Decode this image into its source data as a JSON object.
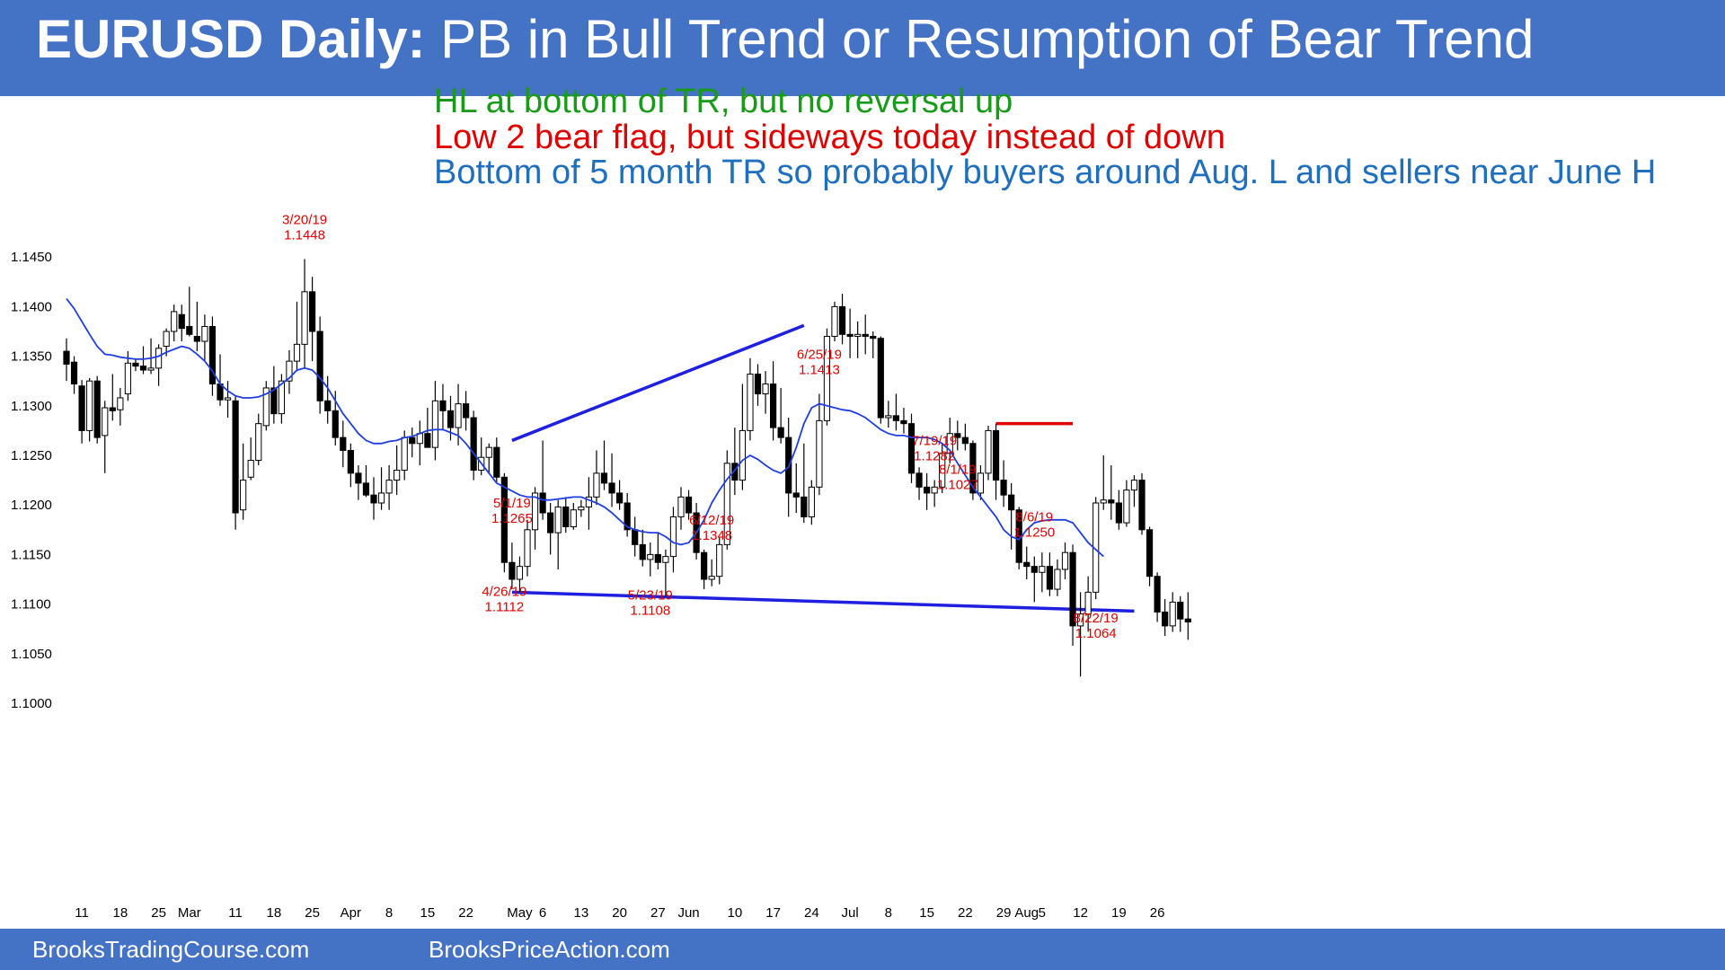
{
  "header": {
    "title_bold": "EURUSD Daily:",
    "title_rest": " PB in Bull Trend or Resumption of Bear Trend"
  },
  "notes": [
    {
      "text": "HL at bottom of TR, but no reversal up",
      "color": "#1a9a1a"
    },
    {
      "text": "Low 2 bear flag, but sideways today instead of down",
      "color": "#e00000"
    },
    {
      "text": "Bottom of 5 month TR so probably buyers around Aug. L and sellers near June H",
      "color": "#1f6fbf"
    }
  ],
  "footer": {
    "left": "BrooksTradingCourse.com",
    "right": "BrooksPriceAction.com"
  },
  "colors": {
    "header_bg": "#4472c4",
    "ema": "#1f3fe0",
    "trendline": "#1f1fe0",
    "resistance": "#e00000",
    "annotation": "#e00000"
  },
  "chart_data": {
    "type": "candlestick",
    "title": "EURUSD Daily",
    "ylim": [
      1.098,
      1.1465
    ],
    "y_ticks": [
      1.1,
      1.105,
      1.11,
      1.115,
      1.12,
      1.125,
      1.13,
      1.135,
      1.14,
      1.145
    ],
    "y_tick_labels": [
      "1.1000",
      "1.1050",
      "1.1100",
      "1.1150",
      "1.1200",
      "1.1250",
      "1.1300",
      "1.1350",
      "1.1400",
      "1.1450"
    ],
    "grid": false,
    "x_ticks": [
      {
        "label": "11",
        "bar": 2
      },
      {
        "label": "18",
        "bar": 7
      },
      {
        "label": "25",
        "bar": 12
      },
      {
        "label": "Mar",
        "bar": 16
      },
      {
        "label": "11",
        "bar": 22
      },
      {
        "label": "18",
        "bar": 27
      },
      {
        "label": "25",
        "bar": 32
      },
      {
        "label": "Apr",
        "bar": 37
      },
      {
        "label": "8",
        "bar": 42
      },
      {
        "label": "15",
        "bar": 47
      },
      {
        "label": "22",
        "bar": 52
      },
      {
        "label": "May",
        "bar": 59
      },
      {
        "label": "6",
        "bar": 62
      },
      {
        "label": "13",
        "bar": 67
      },
      {
        "label": "20",
        "bar": 72
      },
      {
        "label": "27",
        "bar": 77
      },
      {
        "label": "Jun",
        "bar": 81
      },
      {
        "label": "10",
        "bar": 87
      },
      {
        "label": "17",
        "bar": 92
      },
      {
        "label": "24",
        "bar": 97
      },
      {
        "label": "Jul",
        "bar": 102
      },
      {
        "label": "8",
        "bar": 107
      },
      {
        "label": "15",
        "bar": 112
      },
      {
        "label": "22",
        "bar": 117
      },
      {
        "label": "29",
        "bar": 122
      },
      {
        "label": "Aug",
        "bar": 125
      },
      {
        "label": "5",
        "bar": 127
      },
      {
        "label": "12",
        "bar": 132
      },
      {
        "label": "19",
        "bar": 137
      },
      {
        "label": "26",
        "bar": 142
      }
    ],
    "bars_ohlc": [
      [
        1.1355,
        1.1368,
        1.1325,
        1.1342
      ],
      [
        1.1344,
        1.135,
        1.1312,
        1.1322
      ],
      [
        1.132,
        1.1326,
        1.1262,
        1.1275
      ],
      [
        1.1275,
        1.1328,
        1.1264,
        1.1325
      ],
      [
        1.1325,
        1.133,
        1.1262,
        1.1268
      ],
      [
        1.127,
        1.1305,
        1.1232,
        1.1298
      ],
      [
        1.1298,
        1.1332,
        1.1285,
        1.1295
      ],
      [
        1.1296,
        1.1318,
        1.128,
        1.1308
      ],
      [
        1.1312,
        1.1355,
        1.1305,
        1.1343
      ],
      [
        1.1343,
        1.1348,
        1.1335,
        1.134
      ],
      [
        1.134,
        1.136,
        1.1332,
        1.1336
      ],
      [
        1.1336,
        1.1368,
        1.1332,
        1.1338
      ],
      [
        1.1338,
        1.1362,
        1.132,
        1.1358
      ],
      [
        1.136,
        1.1378,
        1.135,
        1.1375
      ],
      [
        1.1375,
        1.1402,
        1.1365,
        1.1395
      ],
      [
        1.1392,
        1.1402,
        1.1365,
        1.1378
      ],
      [
        1.138,
        1.142,
        1.137,
        1.1372
      ],
      [
        1.137,
        1.1405,
        1.1355,
        1.1365
      ],
      [
        1.1365,
        1.1392,
        1.1345,
        1.138
      ],
      [
        1.138,
        1.139,
        1.131,
        1.1322
      ],
      [
        1.1322,
        1.1352,
        1.13,
        1.1306
      ],
      [
        1.1306,
        1.1325,
        1.1288,
        1.1308
      ],
      [
        1.1305,
        1.131,
        1.1175,
        1.1192
      ],
      [
        1.1195,
        1.1262,
        1.1185,
        1.1225
      ],
      [
        1.1228,
        1.1268,
        1.1225,
        1.1245
      ],
      [
        1.1245,
        1.1292,
        1.124,
        1.1282
      ],
      [
        1.128,
        1.1325,
        1.1275,
        1.1318
      ],
      [
        1.1318,
        1.134,
        1.1282,
        1.1292
      ],
      [
        1.1292,
        1.1332,
        1.1282,
        1.1325
      ],
      [
        1.1325,
        1.1356,
        1.1312,
        1.1345
      ],
      [
        1.1345,
        1.1405,
        1.1335,
        1.1362
      ],
      [
        1.1362,
        1.1448,
        1.1338,
        1.1415
      ],
      [
        1.1415,
        1.143,
        1.1345,
        1.1375
      ],
      [
        1.1375,
        1.139,
        1.1292,
        1.1305
      ],
      [
        1.1305,
        1.133,
        1.1282,
        1.1295
      ],
      [
        1.1295,
        1.1315,
        1.126,
        1.1268
      ],
      [
        1.1268,
        1.1285,
        1.1238,
        1.1255
      ],
      [
        1.1255,
        1.1262,
        1.1218,
        1.1232
      ],
      [
        1.1232,
        1.124,
        1.1205,
        1.1222
      ],
      [
        1.1222,
        1.124,
        1.1208,
        1.121
      ],
      [
        1.121,
        1.1228,
        1.1185,
        1.1202
      ],
      [
        1.1202,
        1.1238,
        1.1195,
        1.1212
      ],
      [
        1.1212,
        1.124,
        1.1195,
        1.1225
      ],
      [
        1.1225,
        1.126,
        1.121,
        1.1235
      ],
      [
        1.1235,
        1.1275,
        1.1225,
        1.1268
      ],
      [
        1.1268,
        1.1278,
        1.1248,
        1.1262
      ],
      [
        1.1262,
        1.1285,
        1.124,
        1.1272
      ],
      [
        1.1272,
        1.1298,
        1.1262,
        1.1258
      ],
      [
        1.1258,
        1.1325,
        1.1245,
        1.1305
      ],
      [
        1.1305,
        1.1322,
        1.1275,
        1.1295
      ],
      [
        1.1295,
        1.131,
        1.1265,
        1.1278
      ],
      [
        1.1278,
        1.1322,
        1.126,
        1.1302
      ],
      [
        1.1302,
        1.1315,
        1.1275,
        1.1288
      ],
      [
        1.1288,
        1.1295,
        1.1225,
        1.1235
      ],
      [
        1.1235,
        1.1268,
        1.123,
        1.1248
      ],
      [
        1.1248,
        1.1262,
        1.1232,
        1.1258
      ],
      [
        1.1258,
        1.1268,
        1.1222,
        1.1228
      ],
      [
        1.1228,
        1.1232,
        1.1132,
        1.1142
      ],
      [
        1.1142,
        1.1162,
        1.1115,
        1.1125
      ],
      [
        1.1125,
        1.1148,
        1.1112,
        1.1138
      ],
      [
        1.1138,
        1.1185,
        1.1128,
        1.1175
      ],
      [
        1.1175,
        1.1218,
        1.1155,
        1.1212
      ],
      [
        1.1212,
        1.1265,
        1.1185,
        1.1192
      ],
      [
        1.1192,
        1.1202,
        1.115,
        1.1172
      ],
      [
        1.1172,
        1.1205,
        1.1135,
        1.1198
      ],
      [
        1.1198,
        1.1208,
        1.1172,
        1.1178
      ],
      [
        1.1178,
        1.1202,
        1.1175,
        1.1195
      ],
      [
        1.1195,
        1.1205,
        1.1188,
        1.1198
      ],
      [
        1.1198,
        1.1228,
        1.1175,
        1.1208
      ],
      [
        1.1208,
        1.1255,
        1.12,
        1.1232
      ],
      [
        1.1232,
        1.1265,
        1.1215,
        1.1222
      ],
      [
        1.1222,
        1.1252,
        1.1198,
        1.1212
      ],
      [
        1.1212,
        1.1225,
        1.1195,
        1.1202
      ],
      [
        1.1202,
        1.1212,
        1.1168,
        1.1175
      ],
      [
        1.1175,
        1.1188,
        1.1148,
        1.116
      ],
      [
        1.116,
        1.1175,
        1.1138,
        1.1145
      ],
      [
        1.1145,
        1.1162,
        1.1128,
        1.115
      ],
      [
        1.115,
        1.1172,
        1.1135,
        1.1142
      ],
      [
        1.1142,
        1.1155,
        1.1108,
        1.1148
      ],
      [
        1.1148,
        1.1198,
        1.1132,
        1.1188
      ],
      [
        1.1188,
        1.1218,
        1.1175,
        1.1208
      ],
      [
        1.1208,
        1.1215,
        1.1185,
        1.1192
      ],
      [
        1.1192,
        1.1202,
        1.1145,
        1.1152
      ],
      [
        1.1152,
        1.1155,
        1.1115,
        1.1125
      ],
      [
        1.1125,
        1.1145,
        1.1118,
        1.1128
      ],
      [
        1.1128,
        1.1168,
        1.112,
        1.116
      ],
      [
        1.116,
        1.1255,
        1.1155,
        1.1242
      ],
      [
        1.1242,
        1.1278,
        1.121,
        1.1225
      ],
      [
        1.1225,
        1.1322,
        1.1215,
        1.1275
      ],
      [
        1.1275,
        1.1348,
        1.1265,
        1.1332
      ],
      [
        1.1332,
        1.1342,
        1.13,
        1.1312
      ],
      [
        1.1312,
        1.1335,
        1.1292,
        1.1322
      ],
      [
        1.1322,
        1.1345,
        1.1265,
        1.1278
      ],
      [
        1.1278,
        1.1318,
        1.1262,
        1.1268
      ],
      [
        1.1268,
        1.1288,
        1.1188,
        1.1212
      ],
      [
        1.1212,
        1.1242,
        1.1192,
        1.1208
      ],
      [
        1.1208,
        1.1262,
        1.1182,
        1.1188
      ],
      [
        1.1188,
        1.1225,
        1.118,
        1.1218
      ],
      [
        1.1218,
        1.1312,
        1.121,
        1.1285
      ],
      [
        1.1285,
        1.1378,
        1.128,
        1.137
      ],
      [
        1.137,
        1.1405,
        1.1365,
        1.14
      ],
      [
        1.14,
        1.1413,
        1.1362,
        1.1372
      ],
      [
        1.1372,
        1.1398,
        1.1348,
        1.137
      ],
      [
        1.137,
        1.1385,
        1.1348,
        1.1372
      ],
      [
        1.1372,
        1.1392,
        1.1352,
        1.137
      ],
      [
        1.137,
        1.1375,
        1.1348,
        1.1368
      ],
      [
        1.1368,
        1.137,
        1.1282,
        1.1288
      ],
      [
        1.1288,
        1.1305,
        1.1278,
        1.129
      ],
      [
        1.129,
        1.1312,
        1.1275,
        1.1285
      ],
      [
        1.1285,
        1.1298,
        1.1272,
        1.1282
      ],
      [
        1.1282,
        1.1292,
        1.1222,
        1.1232
      ],
      [
        1.1232,
        1.1238,
        1.1205,
        1.1218
      ],
      [
        1.1218,
        1.1232,
        1.1195,
        1.1212
      ],
      [
        1.1212,
        1.1225,
        1.1198,
        1.1218
      ],
      [
        1.1218,
        1.1262,
        1.1212,
        1.1252
      ],
      [
        1.1252,
        1.1288,
        1.1242,
        1.1272
      ],
      [
        1.1272,
        1.1285,
        1.1255,
        1.1268
      ],
      [
        1.1268,
        1.1282,
        1.1255,
        1.1262
      ],
      [
        1.1262,
        1.1265,
        1.1205,
        1.1212
      ],
      [
        1.1212,
        1.124,
        1.1205,
        1.1232
      ],
      [
        1.1232,
        1.128,
        1.1225,
        1.1275
      ],
      [
        1.1275,
        1.1282,
        1.1205,
        1.1225
      ],
      [
        1.1225,
        1.1245,
        1.1198,
        1.121
      ],
      [
        1.121,
        1.1222,
        1.1155,
        1.1195
      ],
      [
        1.1195,
        1.1198,
        1.1135,
        1.1142
      ],
      [
        1.1142,
        1.1158,
        1.1125,
        1.1138
      ],
      [
        1.1138,
        1.1148,
        1.1102,
        1.1132
      ],
      [
        1.1132,
        1.1152,
        1.1112,
        1.1138
      ],
      [
        1.1138,
        1.1152,
        1.1108,
        1.1115
      ],
      [
        1.1115,
        1.1145,
        1.1108,
        1.1135
      ],
      [
        1.1135,
        1.1162,
        1.1125,
        1.1152
      ],
      [
        1.1152,
        1.116,
        1.1058,
        1.1078
      ],
      [
        1.1078,
        1.1112,
        1.1027,
        1.109
      ],
      [
        1.109,
        1.1128,
        1.1072,
        1.1112
      ],
      [
        1.1112,
        1.1208,
        1.1105,
        1.1202
      ],
      [
        1.1202,
        1.125,
        1.1195,
        1.1205
      ],
      [
        1.1205,
        1.124,
        1.1185,
        1.1202
      ],
      [
        1.1202,
        1.1215,
        1.1175,
        1.1182
      ],
      [
        1.1182,
        1.1225,
        1.1178,
        1.1215
      ],
      [
        1.1215,
        1.123,
        1.1198,
        1.1225
      ],
      [
        1.1225,
        1.1232,
        1.117,
        1.1175
      ],
      [
        1.1175,
        1.1178,
        1.1118,
        1.1128
      ],
      [
        1.1128,
        1.1132,
        1.1082,
        1.1092
      ],
      [
        1.1092,
        1.1105,
        1.1068,
        1.1078
      ],
      [
        1.1078,
        1.1112,
        1.1072,
        1.1102
      ],
      [
        1.1102,
        1.1108,
        1.1072,
        1.1085
      ],
      [
        1.1085,
        1.1112,
        1.1064,
        1.1082
      ]
    ],
    "ema20": [
      1.1408,
      1.1398,
      1.1385,
      1.1372,
      1.136,
      1.1352,
      1.1351,
      1.1349,
      1.1348,
      1.1347,
      1.1347,
      1.1348,
      1.135,
      1.1354,
      1.1357,
      1.136,
      1.1358,
      1.1352,
      1.1345,
      1.1335,
      1.1322,
      1.1315,
      1.131,
      1.1308,
      1.1308,
      1.1309,
      1.1312,
      1.1316,
      1.1322,
      1.1328,
      1.1336,
      1.1338,
      1.1336,
      1.1328,
      1.1318,
      1.1305,
      1.1292,
      1.1282,
      1.1272,
      1.1265,
      1.1262,
      1.1262,
      1.1264,
      1.1265,
      1.1268,
      1.1269,
      1.1272,
      1.1275,
      1.1276,
      1.1276,
      1.1273,
      1.127,
      1.1262,
      1.1252,
      1.1242,
      1.1232,
      1.1222,
      1.1218,
      1.1214,
      1.121,
      1.1208,
      1.1208,
      1.1205,
      1.1205,
      1.1206,
      1.1207,
      1.1208,
      1.1208,
      1.1205,
      1.1202,
      1.1198,
      1.1192,
      1.1185,
      1.1178,
      1.1175,
      1.1173,
      1.1172,
      1.1172,
      1.1168,
      1.1162,
      1.116,
      1.1162,
      1.1172,
      1.1185,
      1.1202,
      1.1215,
      1.1226,
      1.1235,
      1.1245,
      1.125,
      1.1246,
      1.124,
      1.1235,
      1.1232,
      1.1238,
      1.1258,
      1.1282,
      1.1298,
      1.1302,
      1.13,
      1.1298,
      1.1296,
      1.1295,
      1.1292,
      1.1288,
      1.1282,
      1.1276,
      1.1272,
      1.127,
      1.127,
      1.1268,
      1.1268,
      1.1268,
      1.1266,
      1.1262,
      1.1255,
      1.1242,
      1.123,
      1.1218,
      1.1208,
      1.1198,
      1.1188,
      1.1175,
      1.1168,
      1.1165,
      1.1175,
      1.1182,
      1.1184,
      1.1185,
      1.1185,
      1.1185,
      1.1182,
      1.1172,
      1.1162,
      1.1155,
      1.1148
    ],
    "trendlines": [
      {
        "name": "bull-channel-line",
        "from": {
          "bar": 58,
          "price": 1.1265
        },
        "to": {
          "bar": 96,
          "price": 1.1381
        },
        "color": "#1f1fe0"
      },
      {
        "name": "range-bottom-line",
        "from": {
          "bar": 58,
          "price": 1.1112
        },
        "to": {
          "bar": 139,
          "price": 1.1093
        },
        "color": "#1f1fe0"
      },
      {
        "name": "july-high-line",
        "from": {
          "bar": 121,
          "price": 1.1282
        },
        "to": {
          "bar": 131,
          "price": 1.1282
        },
        "color": "#e00000"
      }
    ],
    "annotations": [
      {
        "bar": 31,
        "date": "3/20/19",
        "price": "1.1448",
        "pos": "above",
        "offset": 0
      },
      {
        "bar": 58,
        "date": "5/1/19",
        "price": "1.1265",
        "pos": "above",
        "offset": 0
      },
      {
        "bar": 84,
        "date": "6/12/19",
        "price": "1.1348",
        "pos": "above",
        "offset": 0
      },
      {
        "bar": 98,
        "date": "6/25/19",
        "price": "1.1413",
        "pos": "above",
        "offset": 0
      },
      {
        "bar": 113,
        "date": "7/19/19",
        "price": "1.1282",
        "pos": "above",
        "offset": 0
      },
      {
        "bar": 126,
        "date": "8/6/19",
        "price": "1.1250",
        "pos": "above",
        "offset": 0
      },
      {
        "bar": 57,
        "date": "4/26/19",
        "price": "1.1112",
        "pos": "below",
        "offset": 0
      },
      {
        "bar": 76,
        "date": "5/23/19",
        "price": "1.1108",
        "pos": "below",
        "offset": 0
      },
      {
        "bar": 116,
        "date": "8/1/19",
        "price": "1.1027",
        "pos": "below",
        "offset": 0
      },
      {
        "bar": 134,
        "date": "8/22/19",
        "price": "1.1064",
        "pos": "below",
        "offset": 0
      }
    ]
  }
}
